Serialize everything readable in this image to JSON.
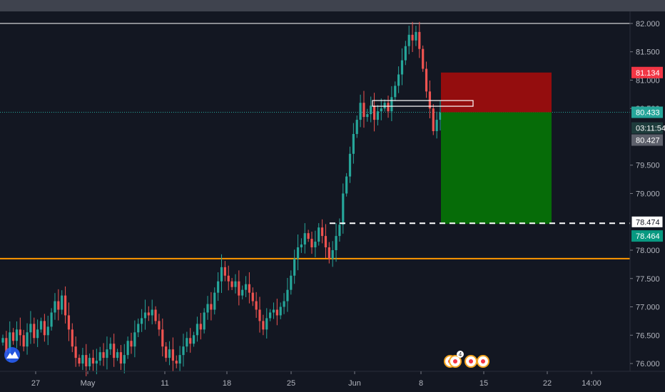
{
  "chart_data": {
    "type": "candlestick",
    "y_axis": {
      "ticks": [
        "82.000",
        "81.500",
        "81.000",
        "80.500",
        "79.500",
        "79.000",
        "78.000",
        "77.500",
        "77.000",
        "76.500",
        "76.000"
      ],
      "range": [
        75.9,
        82.2
      ]
    },
    "x_axis": {
      "ticks": [
        "27",
        "May",
        "11",
        "18",
        "25",
        "Jun",
        "8",
        "15",
        "22",
        "14:00"
      ]
    },
    "price_labels": {
      "stop_loss": "81.134",
      "current": "80.433",
      "countdown": "03:11:54",
      "previous": "80.427",
      "level": "78.474",
      "take_profit": "78.464"
    },
    "levels": {
      "top_resistance": 82.0,
      "entry": 80.433,
      "stop_loss": 81.134,
      "target": 78.464,
      "dashed_support": 78.474,
      "orange_support": 77.85
    },
    "position": {
      "type": "short",
      "entry": 80.433,
      "stop": 81.134,
      "target": 78.464
    },
    "event_badge": "4",
    "colors": {
      "background": "#131722",
      "up_candle": "#26a69a",
      "down_candle": "#ef5350",
      "stop_zone": "#a30c0c",
      "target_zone": "#067506",
      "orange_line": "#ff9800",
      "price_line": "#26a69a",
      "tag_red": "#f23645",
      "tag_green": "#089981"
    },
    "closes": [
      76.45,
      76.2,
      76.55,
      76.4,
      76.6,
      76.5,
      76.3,
      76.55,
      76.7,
      76.45,
      76.6,
      76.75,
      76.5,
      76.65,
      76.9,
      77.1,
      76.95,
      77.2,
      76.85,
      76.6,
      76.3,
      76.1,
      76.0,
      76.15,
      75.95,
      76.1,
      76.0,
      76.05,
      76.2,
      76.1,
      76.25,
      76.35,
      76.1,
      76.2,
      76.0,
      76.15,
      76.4,
      76.3,
      76.55,
      76.7,
      76.8,
      76.9,
      76.85,
      76.95,
      76.75,
      76.6,
      76.3,
      76.1,
      76.25,
      76.05,
      76.0,
      76.15,
      76.3,
      76.45,
      76.35,
      76.5,
      76.7,
      76.6,
      76.9,
      77.05,
      76.95,
      77.25,
      77.45,
      77.7,
      77.55,
      77.45,
      77.35,
      77.45,
      77.2,
      77.3,
      77.4,
      77.25,
      77.1,
      76.95,
      76.75,
      76.6,
      76.8,
      76.9,
      76.95,
      76.85,
      77.0,
      77.1,
      77.3,
      77.55,
      77.85,
      78.05,
      78.1,
      78.3,
      78.2,
      78.05,
      78.15,
      78.4,
      78.25,
      78.05,
      77.85,
      78.0,
      78.25,
      78.45,
      79.0,
      79.3,
      79.7,
      80.05,
      80.3,
      80.6,
      80.35,
      80.4,
      80.55,
      80.3,
      80.45,
      80.5,
      80.6,
      80.45,
      80.7,
      80.9,
      81.1,
      81.35,
      81.6,
      81.8,
      81.7,
      81.85,
      81.55,
      81.2,
      80.8,
      80.5,
      80.1,
      80.3,
      80.43
    ]
  }
}
